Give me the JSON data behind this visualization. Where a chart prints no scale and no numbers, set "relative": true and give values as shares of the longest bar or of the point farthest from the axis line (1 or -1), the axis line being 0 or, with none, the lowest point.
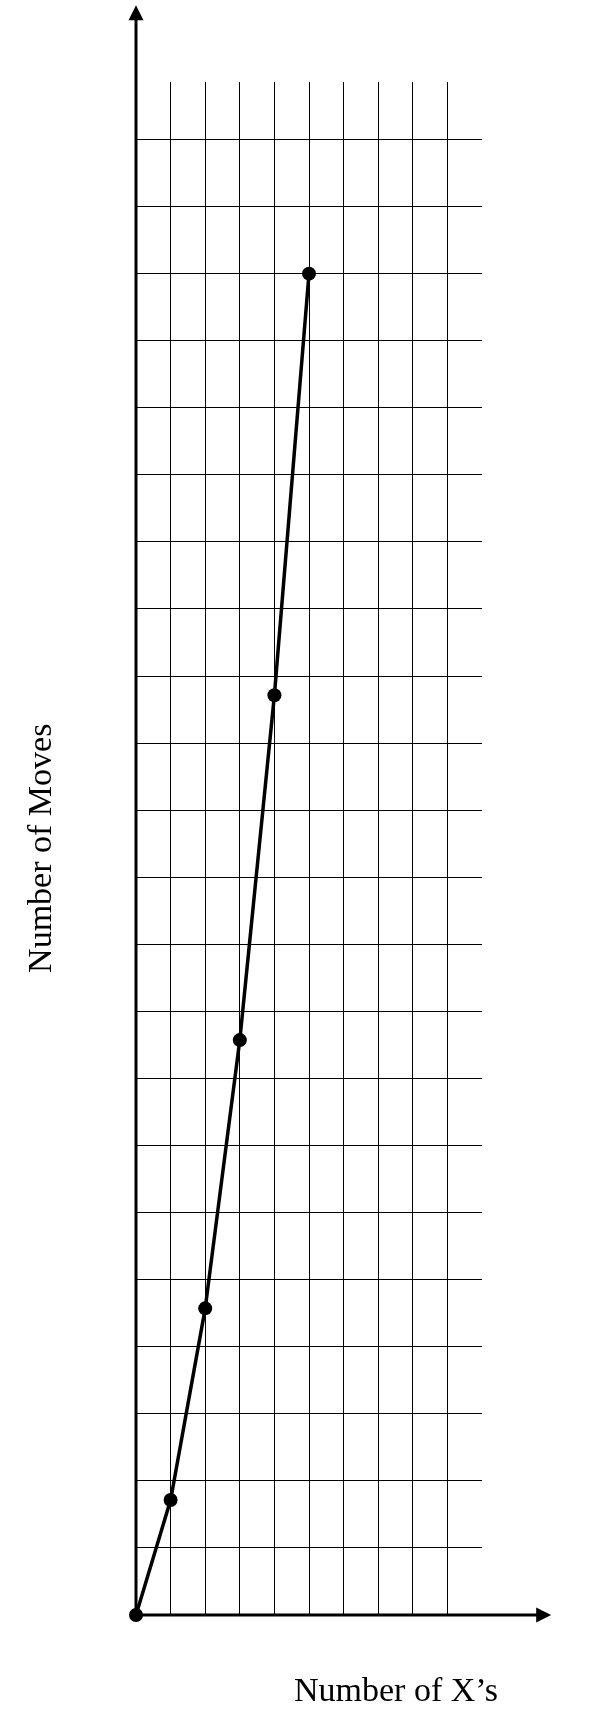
{
  "chart_data": {
    "type": "line",
    "relative": true,
    "xlabel": "Number of X’s",
    "ylabel": "Number of Moves",
    "categories": [
      null,
      null,
      null,
      null,
      null,
      null
    ],
    "series": [
      {
        "color": "#000000",
        "values": [
          0,
          0.0857,
          0.2286,
          0.4286,
          0.6857,
          1
        ]
      }
    ],
    "marker": "circle",
    "line_style": "solid",
    "grid": true,
    "legend": false
  }
}
